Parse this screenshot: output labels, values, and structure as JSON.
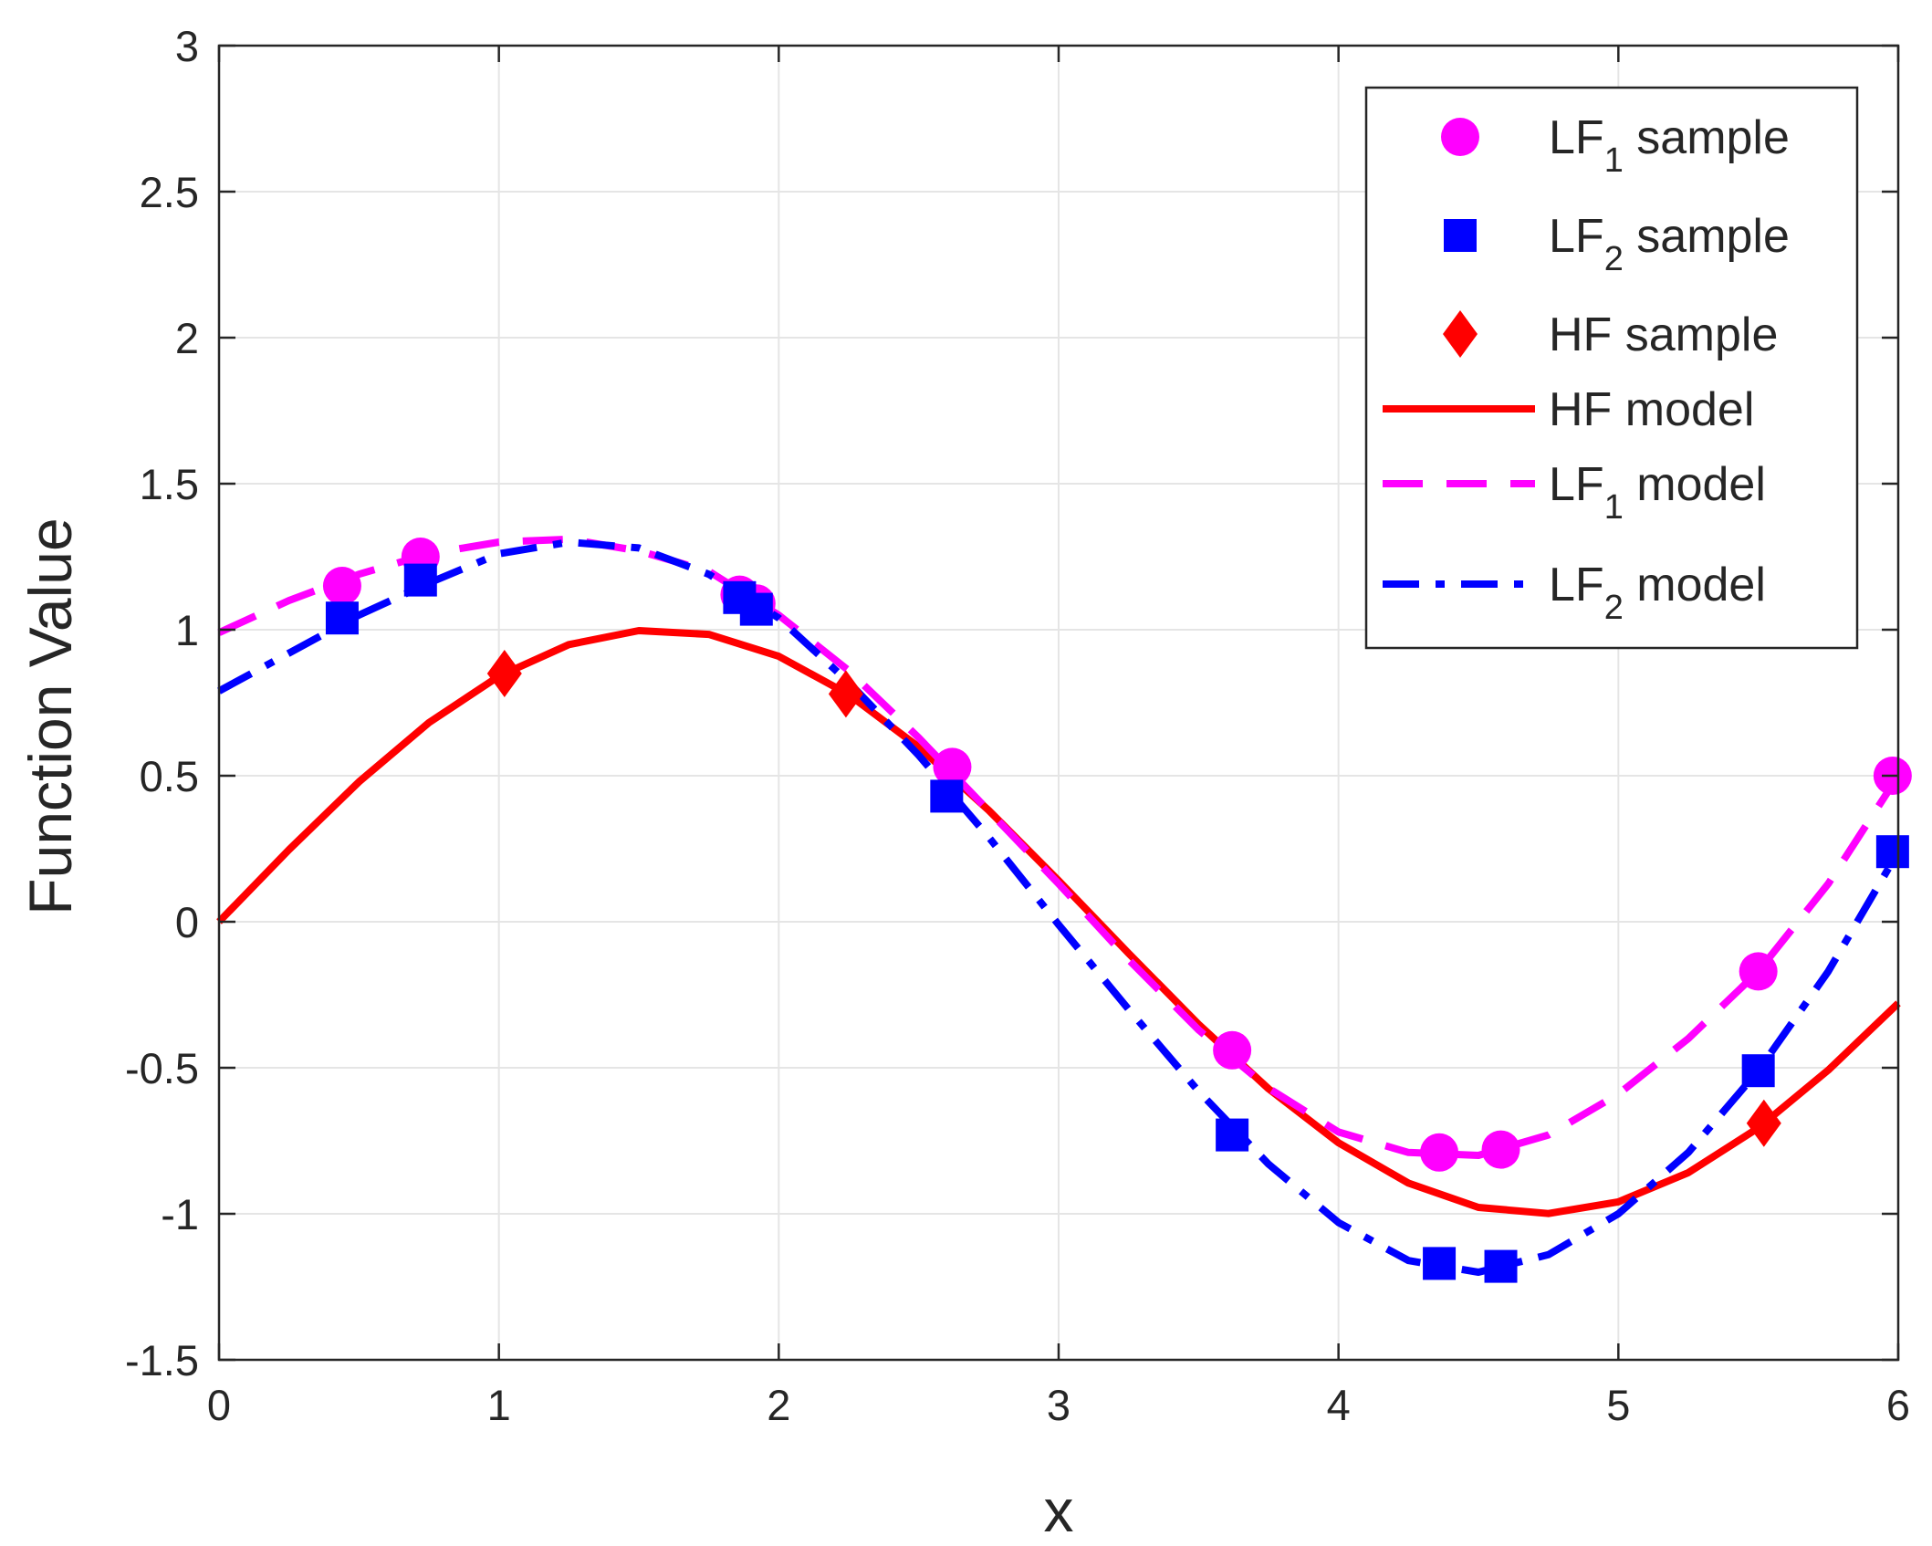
{
  "chart_data": {
    "type": "line",
    "title": "",
    "xlabel": "x",
    "ylabel": "Function Value",
    "xlim": [
      0,
      6
    ],
    "ylim": [
      -1.5,
      3
    ],
    "grid": true,
    "legend_position": "top-right",
    "x_ticks": [
      0,
      1,
      2,
      3,
      4,
      5,
      6
    ],
    "x_tick_labels": [
      "0",
      "1",
      "2",
      "3",
      "4",
      "5",
      "6"
    ],
    "y_ticks": [
      -1.5,
      -1,
      -0.5,
      0,
      0.5,
      1,
      1.5,
      2,
      2.5,
      3
    ],
    "y_tick_labels": [
      "-1.5",
      "-1",
      "-0.5",
      "0",
      "0.5",
      "1",
      "1.5",
      "2",
      "2.5",
      "3"
    ],
    "colors": {
      "hf": "#ff0000",
      "lf1": "#ff00ff",
      "lf2": "#0000ff",
      "axis": "#262626",
      "grid": "#e5e5e5"
    },
    "legend": [
      {
        "key": "lf1_sample",
        "main": "LF",
        "sub": "1",
        "rest": " sample"
      },
      {
        "key": "lf2_sample",
        "main": "LF",
        "sub": "2",
        "rest": " sample"
      },
      {
        "key": "hf_sample",
        "main": "HF sample",
        "sub": "",
        "rest": ""
      },
      {
        "key": "hf_model",
        "main": "HF model",
        "sub": "",
        "rest": ""
      },
      {
        "key": "lf1_model",
        "main": "LF",
        "sub": "1",
        "rest": " model"
      },
      {
        "key": "lf2_model",
        "main": "LF",
        "sub": "2",
        "rest": " model"
      }
    ],
    "series": [
      {
        "name": "HF model",
        "kind": "line",
        "style": "solid",
        "color": "#ff0000",
        "x": [
          0,
          0.25,
          0.5,
          0.75,
          1.0,
          1.25,
          1.5,
          1.75,
          2.0,
          2.25,
          2.5,
          2.75,
          3.0,
          3.25,
          3.5,
          3.75,
          4.0,
          4.25,
          4.5,
          4.75,
          5.0,
          5.25,
          5.5,
          5.75,
          6.0
        ],
        "y": [
          0,
          0.247,
          0.479,
          0.682,
          0.841,
          0.949,
          0.997,
          0.984,
          0.909,
          0.778,
          0.598,
          0.382,
          0.141,
          -0.108,
          -0.351,
          -0.572,
          -0.757,
          -0.895,
          -0.978,
          -0.999,
          -0.959,
          -0.859,
          -0.706,
          -0.508,
          -0.279
        ]
      },
      {
        "name": "LF1 model",
        "kind": "line",
        "style": "dashed",
        "color": "#ff00ff",
        "x": [
          0,
          0.25,
          0.5,
          0.75,
          1.0,
          1.25,
          1.5,
          1.75,
          2.0,
          2.25,
          2.5,
          2.75,
          3.0,
          3.25,
          3.5,
          3.75,
          4.0,
          4.25,
          4.5,
          4.75,
          5.0,
          5.25,
          5.5,
          5.75,
          6.0
        ],
        "y": [
          0.99,
          1.1,
          1.19,
          1.26,
          1.3,
          1.31,
          1.27,
          1.2,
          1.05,
          0.86,
          0.63,
          0.38,
          0.13,
          -0.13,
          -0.37,
          -0.57,
          -0.72,
          -0.79,
          -0.8,
          -0.73,
          -0.59,
          -0.4,
          -0.17,
          0.13,
          0.5
        ]
      },
      {
        "name": "LF2 model",
        "kind": "line",
        "style": "dashdot",
        "color": "#0000ff",
        "x": [
          0,
          0.25,
          0.5,
          0.75,
          1.0,
          1.25,
          1.5,
          1.75,
          2.0,
          2.25,
          2.5,
          2.75,
          3.0,
          3.25,
          3.5,
          3.75,
          4.0,
          4.25,
          4.5,
          4.75,
          5.0,
          5.25,
          5.5,
          5.75,
          6.0
        ],
        "y": [
          0.79,
          0.92,
          1.05,
          1.16,
          1.26,
          1.3,
          1.28,
          1.19,
          1.04,
          0.82,
          0.57,
          0.29,
          -0.01,
          -0.3,
          -0.58,
          -0.83,
          -1.03,
          -1.16,
          -1.2,
          -1.14,
          -1.0,
          -0.79,
          -0.51,
          -0.17,
          0.24
        ]
      },
      {
        "name": "LF1 sample",
        "kind": "marker",
        "marker": "circle",
        "color": "#ff00ff",
        "x": [
          0.44,
          0.72,
          1.86,
          1.92,
          2.62,
          3.62,
          4.36,
          4.58,
          5.5,
          5.98
        ],
        "y": [
          1.15,
          1.25,
          1.12,
          1.09,
          0.53,
          -0.44,
          -0.79,
          -0.78,
          -0.17,
          0.5
        ]
      },
      {
        "name": "LF2 sample",
        "kind": "marker",
        "marker": "square",
        "color": "#0000ff",
        "x": [
          0.44,
          0.72,
          1.86,
          1.92,
          2.6,
          3.62,
          4.36,
          4.58,
          5.5,
          5.98
        ],
        "y": [
          1.04,
          1.17,
          1.11,
          1.07,
          0.43,
          -0.73,
          -1.17,
          -1.18,
          -0.51,
          0.24
        ]
      },
      {
        "name": "HF sample",
        "kind": "marker",
        "marker": "diamond",
        "color": "#ff0000",
        "x": [
          1.02,
          2.24,
          5.52
        ],
        "y": [
          0.85,
          0.78,
          -0.69
        ]
      }
    ]
  }
}
